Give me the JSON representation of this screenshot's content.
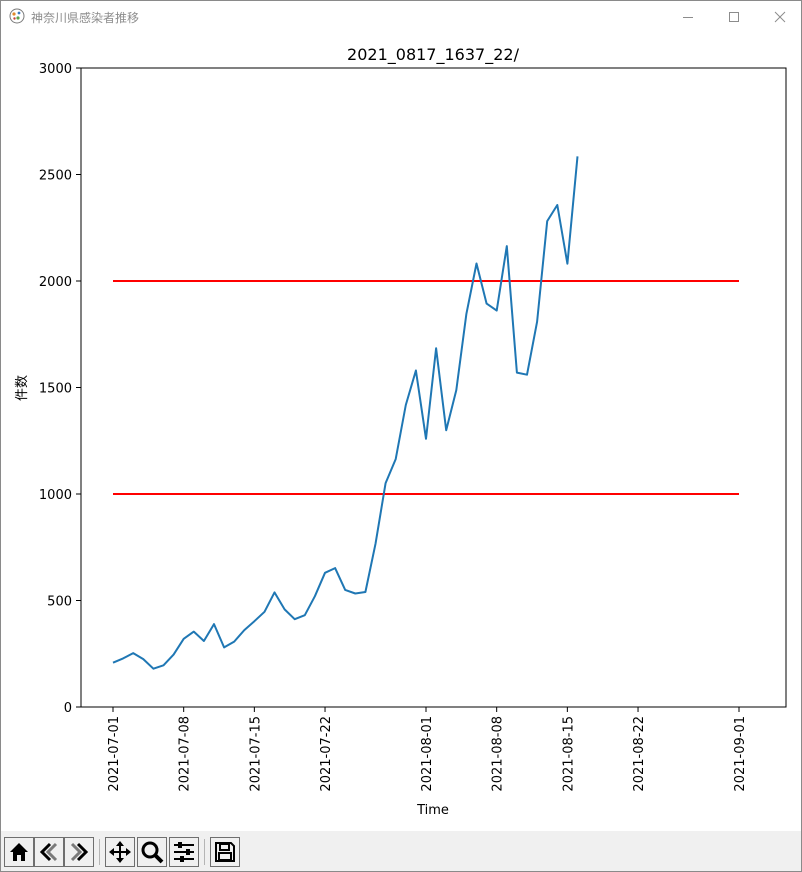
{
  "window": {
    "title": "神奈川県感染者推移"
  },
  "toolbar": {
    "buttons": [
      {
        "icon": "home-icon"
      },
      {
        "icon": "back-icon"
      },
      {
        "icon": "forward-icon"
      },
      {
        "icon": "pan-icon"
      },
      {
        "icon": "zoom-icon"
      },
      {
        "icon": "configure-icon"
      },
      {
        "icon": "save-icon"
      }
    ]
  },
  "chart_data": {
    "type": "line",
    "title": "2021_0817_1637_22/",
    "xlabel": "Time",
    "ylabel": "件数",
    "xlim": [
      "2021-07-01",
      "2021-09-01"
    ],
    "ylim": [
      0,
      3000
    ],
    "x_ticks": [
      "2021-07-01",
      "2021-07-08",
      "2021-07-15",
      "2021-07-22",
      "2021-08-01",
      "2021-08-08",
      "2021-08-15",
      "2021-08-22",
      "2021-09-01"
    ],
    "y_ticks": [
      0,
      500,
      1000,
      1500,
      2000,
      2500,
      3000
    ],
    "grid": false,
    "series": [
      {
        "color": "#1f77b4",
        "points": [
          [
            "2021-07-01",
            208
          ],
          [
            "2021-07-02",
            228
          ],
          [
            "2021-07-03",
            253
          ],
          [
            "2021-07-04",
            225
          ],
          [
            "2021-07-05",
            180
          ],
          [
            "2021-07-06",
            196
          ],
          [
            "2021-07-07",
            246
          ],
          [
            "2021-07-08",
            320
          ],
          [
            "2021-07-09",
            354
          ],
          [
            "2021-07-10",
            310
          ],
          [
            "2021-07-11",
            389
          ],
          [
            "2021-07-12",
            280
          ],
          [
            "2021-07-13",
            307
          ],
          [
            "2021-07-14",
            361
          ],
          [
            "2021-07-15",
            403
          ],
          [
            "2021-07-16",
            447
          ],
          [
            "2021-07-17",
            538
          ],
          [
            "2021-07-18",
            458
          ],
          [
            "2021-07-19",
            412
          ],
          [
            "2021-07-20",
            431
          ],
          [
            "2021-07-21",
            520
          ],
          [
            "2021-07-22",
            630
          ],
          [
            "2021-07-23",
            652
          ],
          [
            "2021-07-24",
            550
          ],
          [
            "2021-07-25",
            533
          ],
          [
            "2021-07-26",
            540
          ],
          [
            "2021-07-27",
            766
          ],
          [
            "2021-07-28",
            1051
          ],
          [
            "2021-07-29",
            1164
          ],
          [
            "2021-07-30",
            1418
          ],
          [
            "2021-07-31",
            1580
          ],
          [
            "2021-08-01",
            1259
          ],
          [
            "2021-08-02",
            1684
          ],
          [
            "2021-08-03",
            1299
          ],
          [
            "2021-08-04",
            1488
          ],
          [
            "2021-08-05",
            1846
          ],
          [
            "2021-08-06",
            2082
          ],
          [
            "2021-08-07",
            1894
          ],
          [
            "2021-08-08",
            1861
          ],
          [
            "2021-08-09",
            2164
          ],
          [
            "2021-08-10",
            1570
          ],
          [
            "2021-08-11",
            1560
          ],
          [
            "2021-08-12",
            1809
          ],
          [
            "2021-08-13",
            2281
          ],
          [
            "2021-08-14",
            2357
          ],
          [
            "2021-08-15",
            2081
          ],
          [
            "2021-08-16",
            2585
          ]
        ]
      }
    ],
    "reference_lines": [
      {
        "y": 2000,
        "color": "#ff0000",
        "x_start": "2021-07-01",
        "x_end": "2021-09-01"
      },
      {
        "y": 1000,
        "color": "#ff0000",
        "x_start": "2021-07-01",
        "x_end": "2021-09-01"
      }
    ]
  }
}
